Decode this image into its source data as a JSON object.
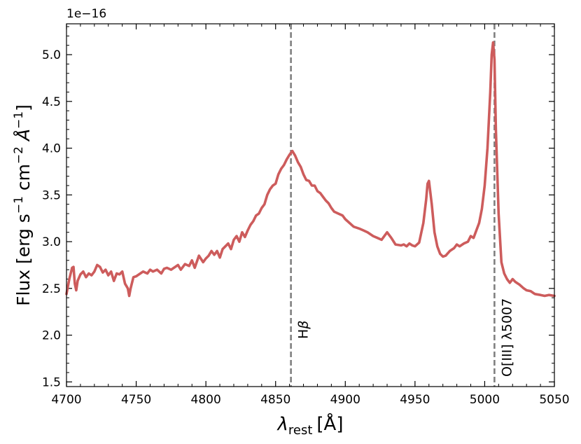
{
  "chart_data": {
    "type": "line",
    "title": "",
    "xlabel": "λrest [Å]",
    "ylabel": "Flux [erg s−1 cm−2 Å−1]",
    "xlabel_parts": {
      "symbol": "λ",
      "subscript": "rest",
      "unit": "[Å]"
    },
    "ylabel_parts": {
      "pre": "Flux [erg s",
      "exp1": "−1",
      "mid": " cm",
      "exp2": "−2",
      "mid2": " Å",
      "exp3": "−1",
      "post": "]"
    },
    "y_offset_label": "1e−16",
    "xlim": [
      4700,
      5050
    ],
    "ylim": [
      1.45,
      5.33
    ],
    "x_ticks": [
      4700,
      4750,
      4800,
      4850,
      4900,
      4950,
      5000,
      5050
    ],
    "y_ticks": [
      1.5,
      2.0,
      2.5,
      3.0,
      3.5,
      4.0,
      4.5,
      5.0
    ],
    "y_tick_labels": [
      "1.5",
      "2.0",
      "2.5",
      "3.0",
      "3.5",
      "4.0",
      "4.5",
      "5.0"
    ],
    "grid": false,
    "line_color": "#cd5c5c",
    "annotation_color": "#808080",
    "series": [
      {
        "x": [
          4700,
          4702,
          4704,
          4705,
          4706,
          4707,
          4708,
          4710,
          4712,
          4714,
          4716,
          4718,
          4720,
          4722,
          4724,
          4726,
          4728,
          4730,
          4732,
          4734,
          4736,
          4738,
          4740,
          4742,
          4744,
          4745,
          4746,
          4748,
          4750,
          4752,
          4755,
          4758,
          4760,
          4762,
          4765,
          4768,
          4770,
          4772,
          4775,
          4778,
          4780,
          4782,
          4785,
          4788,
          4790,
          4792,
          4795,
          4798,
          4800,
          4802,
          4804,
          4806,
          4808,
          4810,
          4812,
          4814,
          4816,
          4818,
          4820,
          4822,
          4824,
          4826,
          4828,
          4830,
          4832,
          4834,
          4836,
          4838,
          4840,
          4842,
          4844,
          4846,
          4848,
          4850,
          4852,
          4854,
          4856,
          4858,
          4860,
          4861,
          4862,
          4864,
          4866,
          4868,
          4870,
          4872,
          4874,
          4876,
          4878,
          4880,
          4882,
          4884,
          4886,
          4888,
          4890,
          4892,
          4895,
          4898,
          4900,
          4903,
          4906,
          4910,
          4913,
          4916,
          4920,
          4923,
          4926,
          4930,
          4933,
          4936,
          4940,
          4942,
          4944,
          4946,
          4948,
          4950,
          4953,
          4956,
          4958,
          4959,
          4960,
          4962,
          4964,
          4966,
          4968,
          4970,
          4972,
          4975,
          4978,
          4980,
          4982,
          4985,
          4988,
          4990,
          4992,
          4994,
          4996,
          4998,
          5000,
          5002,
          5004,
          5005,
          5006,
          5007,
          5008,
          5010,
          5012,
          5014,
          5016,
          5018,
          5020,
          5022,
          5025,
          5028,
          5030,
          5033,
          5036,
          5040,
          5043,
          5046,
          5050
        ],
        "y": [
          2.44,
          2.6,
          2.72,
          2.73,
          2.55,
          2.48,
          2.58,
          2.65,
          2.68,
          2.62,
          2.66,
          2.64,
          2.68,
          2.75,
          2.73,
          2.67,
          2.7,
          2.64,
          2.68,
          2.58,
          2.66,
          2.65,
          2.68,
          2.55,
          2.5,
          2.42,
          2.5,
          2.62,
          2.63,
          2.65,
          2.68,
          2.66,
          2.7,
          2.68,
          2.7,
          2.66,
          2.71,
          2.72,
          2.7,
          2.73,
          2.75,
          2.7,
          2.76,
          2.74,
          2.8,
          2.72,
          2.85,
          2.78,
          2.82,
          2.85,
          2.9,
          2.86,
          2.9,
          2.83,
          2.92,
          2.95,
          2.98,
          2.92,
          3.02,
          3.06,
          3.0,
          3.1,
          3.05,
          3.12,
          3.18,
          3.22,
          3.28,
          3.3,
          3.36,
          3.4,
          3.5,
          3.56,
          3.6,
          3.62,
          3.72,
          3.78,
          3.82,
          3.88,
          3.93,
          3.95,
          3.97,
          3.92,
          3.85,
          3.8,
          3.72,
          3.66,
          3.65,
          3.6,
          3.6,
          3.54,
          3.52,
          3.48,
          3.44,
          3.41,
          3.36,
          3.32,
          3.3,
          3.28,
          3.24,
          3.2,
          3.16,
          3.14,
          3.12,
          3.1,
          3.06,
          3.04,
          3.02,
          3.1,
          3.04,
          2.97,
          2.96,
          2.97,
          2.95,
          2.98,
          2.96,
          2.95,
          2.99,
          3.2,
          3.45,
          3.62,
          3.65,
          3.4,
          3.1,
          2.95,
          2.87,
          2.84,
          2.85,
          2.9,
          2.93,
          2.97,
          2.95,
          2.98,
          3.0,
          3.06,
          3.04,
          3.12,
          3.2,
          3.35,
          3.6,
          4.0,
          4.6,
          5.0,
          5.13,
          4.95,
          4.2,
          3.3,
          2.78,
          2.66,
          2.6,
          2.56,
          2.6,
          2.57,
          2.54,
          2.5,
          2.48,
          2.47,
          2.44,
          2.43,
          2.42,
          2.43,
          2.42
        ]
      }
    ],
    "annotations": [
      {
        "x": 4861,
        "label": "Hβ",
        "label_base": "H",
        "label_greek": "β"
      },
      {
        "x": 5007,
        "label": "O[III] λ5007"
      }
    ]
  }
}
